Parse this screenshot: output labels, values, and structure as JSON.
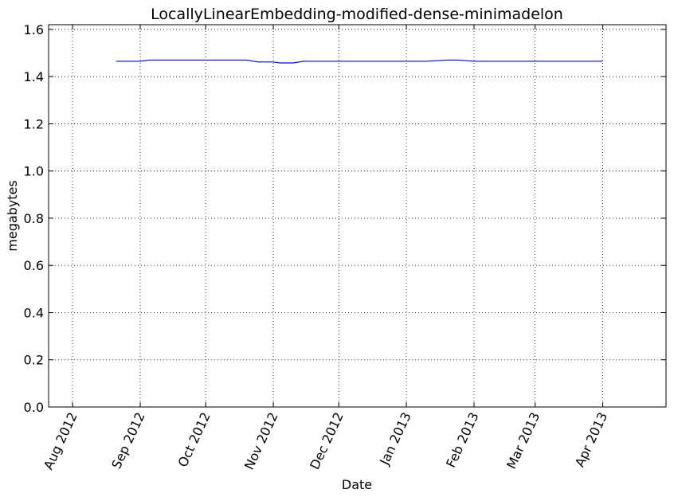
{
  "chart_data": {
    "type": "line",
    "title": "LocallyLinearEmbedding-modified-dense-minimadelon",
    "xlabel": "Date",
    "ylabel": "megabytes",
    "x_axis_type": "date",
    "xlim": [
      "2012-07-21",
      "2013-04-30"
    ],
    "ylim": [
      0,
      1.62
    ],
    "grid": true,
    "grid_style": "dotted",
    "x_tick_labels": [
      "Aug 2012",
      "Sep 2012",
      "Oct 2012",
      "Nov 2012",
      "Dec 2012",
      "Jan 2013",
      "Feb 2013",
      "Mar 2013",
      "Apr 2013"
    ],
    "x_tick_dates": [
      "2012-08-01",
      "2012-09-01",
      "2012-10-01",
      "2012-11-01",
      "2012-12-01",
      "2013-01-01",
      "2013-02-01",
      "2013-03-01",
      "2013-04-01"
    ],
    "y_ticks": [
      0.0,
      0.2,
      0.4,
      0.6,
      0.8,
      1.0,
      1.2,
      1.4,
      1.6
    ],
    "y_tick_labels": [
      "0.0",
      "0.2",
      "0.4",
      "0.6",
      "0.8",
      "1.0",
      "1.2",
      "1.4",
      "1.6"
    ],
    "series": [
      {
        "color": "#0000ff",
        "x": [
          "2012-08-21",
          "2012-09-01",
          "2012-09-05",
          "2012-09-15",
          "2012-10-01",
          "2012-10-15",
          "2012-10-20",
          "2012-10-25",
          "2012-11-01",
          "2012-11-04",
          "2012-11-10",
          "2012-11-15",
          "2012-12-01",
          "2012-12-15",
          "2013-01-01",
          "2013-01-10",
          "2013-01-20",
          "2013-01-25",
          "2013-02-01",
          "2013-02-15",
          "2013-03-01",
          "2013-03-15",
          "2013-04-01"
        ],
        "y": [
          1.465,
          1.465,
          1.47,
          1.47,
          1.47,
          1.47,
          1.47,
          1.462,
          1.462,
          1.458,
          1.458,
          1.465,
          1.465,
          1.465,
          1.465,
          1.465,
          1.47,
          1.47,
          1.465,
          1.465,
          1.465,
          1.465,
          1.465
        ]
      }
    ]
  }
}
